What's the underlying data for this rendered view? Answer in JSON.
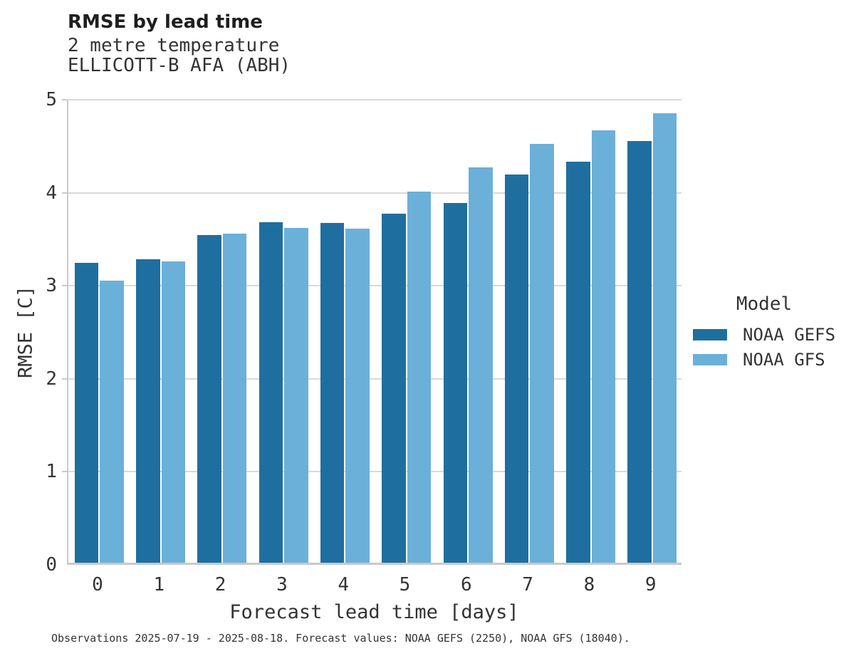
{
  "header": {
    "title": "RMSE by lead time",
    "subtitle_line1": "2 metre temperature",
    "subtitle_line2": "ELLICOTT-B AFA (ABH)"
  },
  "chart_data": {
    "type": "bar",
    "title": "RMSE by lead time",
    "subtitle": [
      "2 metre temperature",
      "ELLICOTT-B AFA (ABH)"
    ],
    "categories": [
      "0",
      "1",
      "2",
      "3",
      "4",
      "5",
      "6",
      "7",
      "8",
      "9"
    ],
    "series": [
      {
        "name": "NOAA GEFS",
        "color": "#1e6f9f",
        "values": [
          3.22,
          3.26,
          3.52,
          3.66,
          3.65,
          3.75,
          3.87,
          4.17,
          4.31,
          4.53
        ]
      },
      {
        "name": "NOAA GFS",
        "color": "#6bb0d8",
        "values": [
          3.03,
          3.24,
          3.54,
          3.6,
          3.59,
          3.99,
          4.25,
          4.5,
          4.65,
          4.83
        ]
      }
    ],
    "xlabel": "Forecast lead time [days]",
    "ylabel": "RMSE [C]",
    "ylim": [
      0,
      5
    ],
    "yticks": [
      0,
      1,
      2,
      3,
      4,
      5
    ],
    "grid": true,
    "legend_title": "Model",
    "legend_position": "right",
    "colors": {
      "grid": "#d9d9d9",
      "axis": "#c9c9c9",
      "background": "#ffffff"
    }
  },
  "footer": {
    "caption": "Observations 2025-07-19 - 2025-08-18. Forecast values: NOAA GEFS (2250), NOAA GFS (18040)."
  }
}
